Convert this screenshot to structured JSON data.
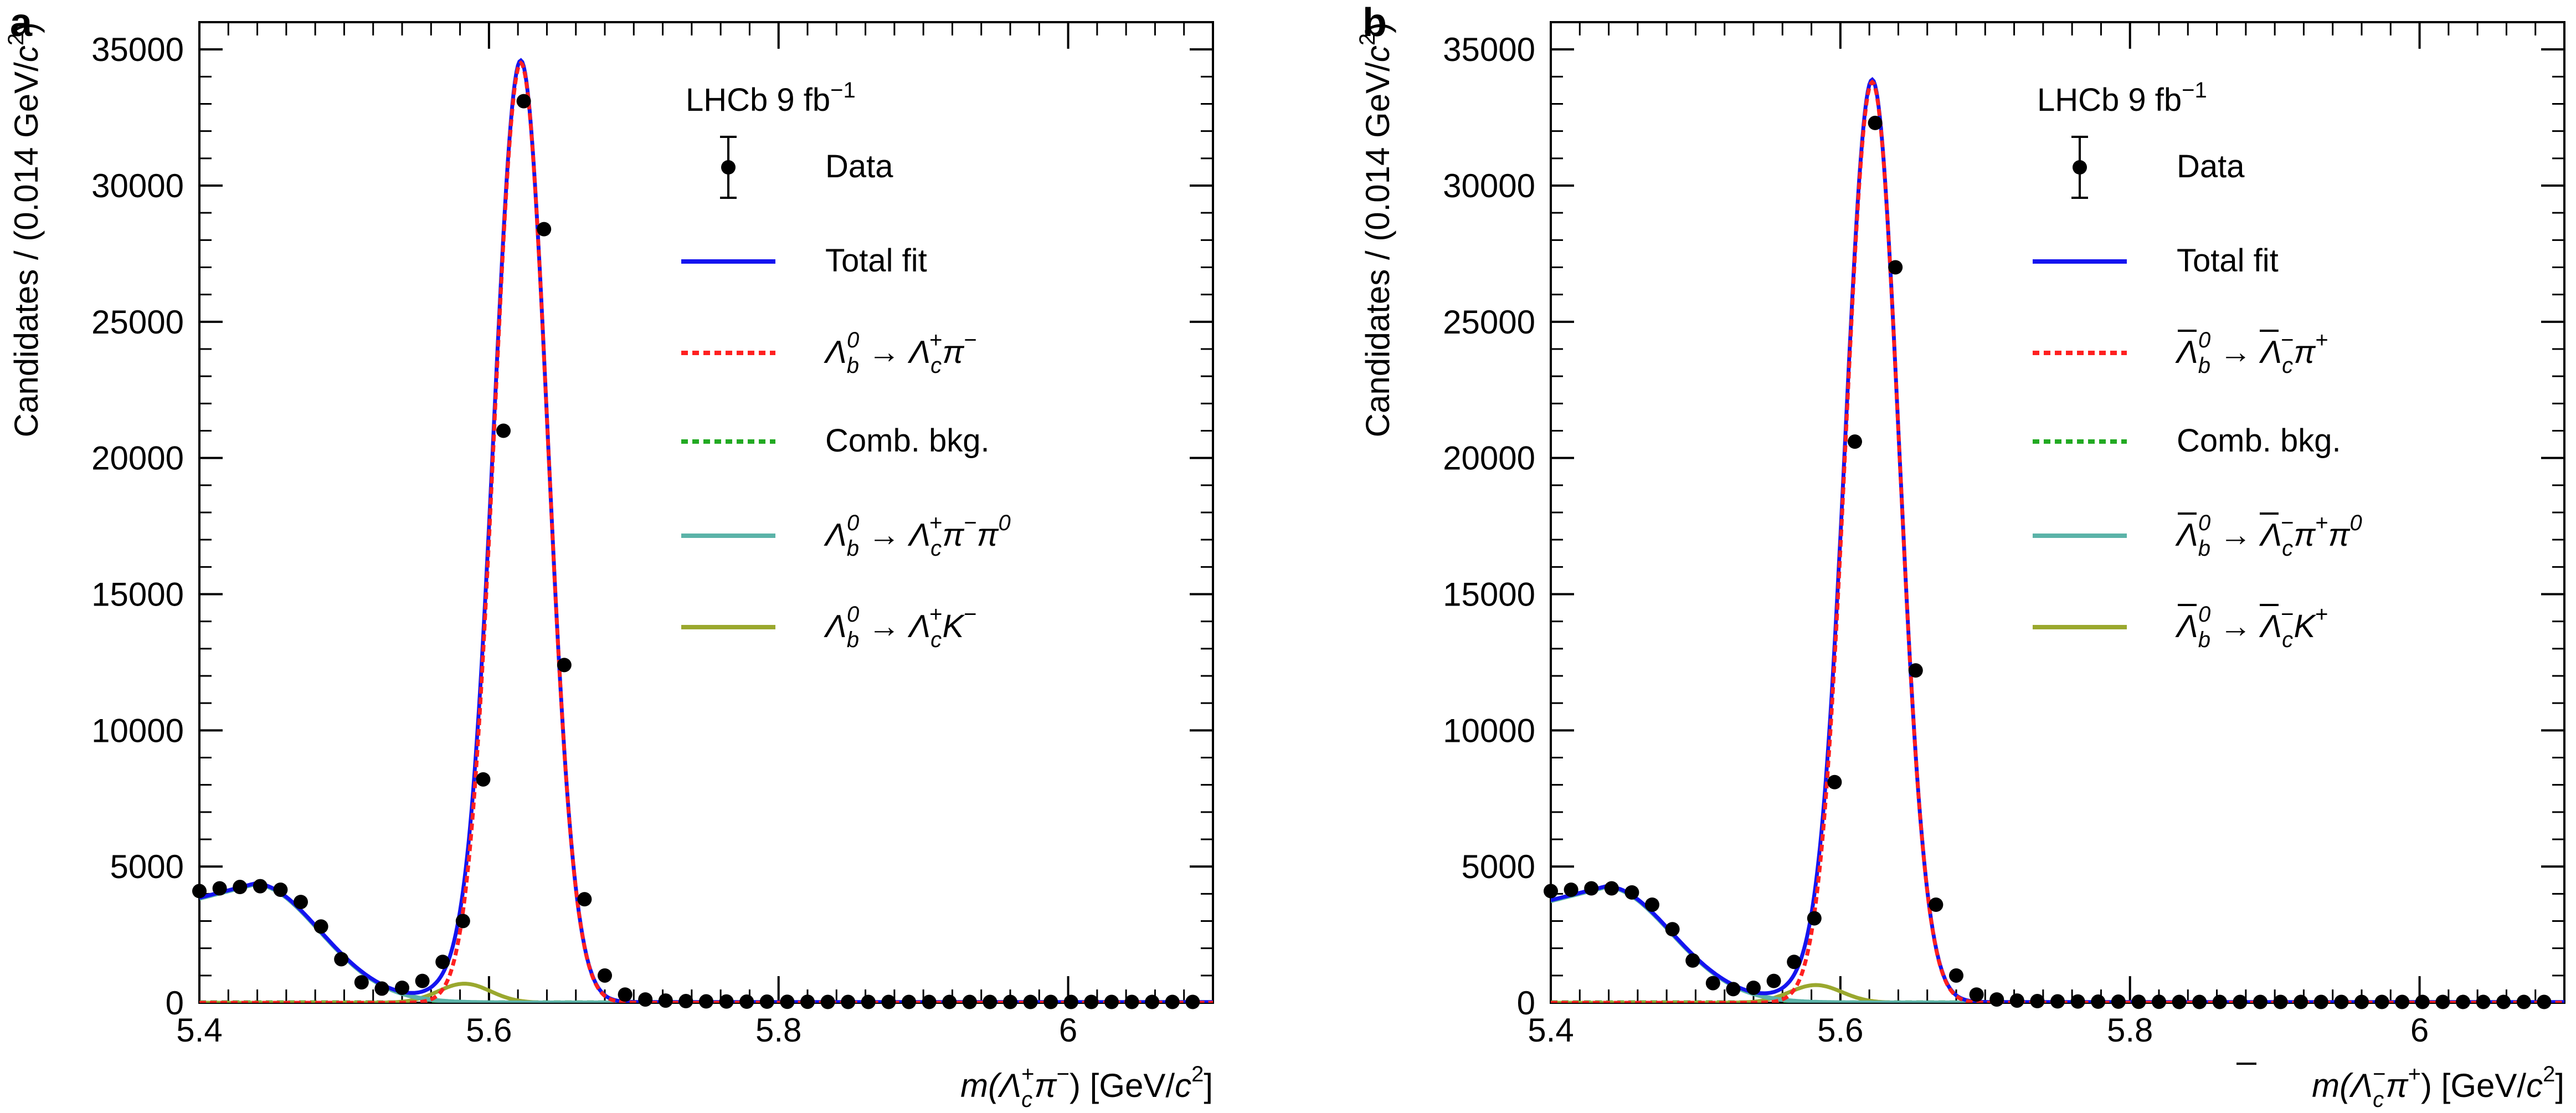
{
  "chart_data": [
    {
      "panel_label": "a",
      "type": "line",
      "title": "",
      "experiment_label": "LHCb 9 fb",
      "experiment_label_sup": "−1",
      "xlabel": {
        "prefix": "m(",
        "particle": "Λ",
        "sup": "+",
        "sub": "c",
        "rest": "π",
        "rest_sup": "−",
        "close": ")",
        "unit": " [GeV/",
        "unit_c": "c",
        "unit_sup": "2",
        "unit_close": "]"
      },
      "ylabel": "Candidates / (0.014 GeV/c²)",
      "ylabel_parts": {
        "main": "Candidates / (0.014 GeV/",
        "c": "c",
        "sup": "2",
        "close": ")"
      },
      "xlim": [
        5.4,
        6.1
      ],
      "ylim": [
        0,
        36000
      ],
      "xticks": [
        5.4,
        5.6,
        5.8,
        6
      ],
      "xtick_labels": [
        "5.4",
        "5.6",
        "5.8",
        "6"
      ],
      "yticks": [
        0,
        5000,
        10000,
        15000,
        20000,
        25000,
        30000,
        35000
      ],
      "ytick_labels": [
        "0",
        "5000",
        "10000",
        "15000",
        "20000",
        "25000",
        "30000",
        "35000"
      ],
      "legend_position": "top-right",
      "legend": [
        {
          "key": "data",
          "label": "Data"
        },
        {
          "key": "total",
          "label": "Total fit"
        },
        {
          "key": "signal",
          "parts": [
            "Λ",
            "b",
            "0",
            " → ",
            "Λ",
            "c",
            "+",
            "π",
            "−",
            "",
            ""
          ]
        },
        {
          "key": "comb",
          "label": "Comb. bkg."
        },
        {
          "key": "pi0",
          "parts": [
            "Λ",
            "b",
            "0",
            " → ",
            "Λ",
            "c",
            "+",
            "π",
            "−",
            "π",
            "0"
          ]
        },
        {
          "key": "kaon",
          "parts": [
            "Λ",
            "b",
            "0",
            " → ",
            "Λ",
            "c",
            "+",
            "K",
            "−",
            "",
            ""
          ]
        }
      ],
      "data": {
        "x": [
          5.4,
          5.414,
          5.428,
          5.442,
          5.456,
          5.47,
          5.484,
          5.498,
          5.512,
          5.526,
          5.54,
          5.554,
          5.568,
          5.582,
          5.596,
          5.61,
          5.624,
          5.638,
          5.652,
          5.666,
          5.68,
          5.694,
          5.708,
          5.722,
          5.736,
          5.75,
          5.764,
          5.778,
          5.792,
          5.806,
          5.82,
          5.834,
          5.848,
          5.862,
          5.876,
          5.89,
          5.904,
          5.918,
          5.932,
          5.946,
          5.96,
          5.974,
          5.988,
          6.002,
          6.016,
          6.03,
          6.044,
          6.058,
          6.072,
          6.086
        ],
        "y": [
          4100,
          4200,
          4250,
          4280,
          4150,
          3700,
          2800,
          1600,
          750,
          520,
          550,
          800,
          1500,
          3000,
          8200,
          21000,
          33100,
          28400,
          12400,
          3800,
          1000,
          300,
          120,
          80,
          60,
          50,
          45,
          40,
          40,
          35,
          35,
          30,
          30,
          30,
          30,
          30,
          30,
          30,
          30,
          30,
          30,
          30,
          30,
          30,
          30,
          30,
          30,
          30,
          30,
          30
        ]
      },
      "fit": {
        "signal_peak": 34500,
        "signal_mean": 5.622,
        "signal_sigma": 0.0185,
        "pi0_peak": 4350,
        "pi0_mean": 5.438,
        "pi0_sigma": 0.045,
        "kaon_peak": 700,
        "kaon_mean": 5.583,
        "kaon_sigma": 0.018,
        "comb_level": 25
      },
      "colors": {
        "data": "#000000",
        "total": "#1414f0",
        "signal": "#ff2020",
        "comb": "#22aa22",
        "pi0": "#5bb3a8",
        "kaon": "#9aa82e"
      }
    },
    {
      "panel_label": "b",
      "type": "line",
      "title": "",
      "experiment_label": "LHCb 9 fb",
      "experiment_label_sup": "−1",
      "xlabel": {
        "prefix": "m(",
        "particle": "Λ",
        "sup": "−",
        "sub": "c",
        "rest": "π",
        "rest_sup": "+",
        "close": ")",
        "unit": " [GeV/",
        "unit_c": "c",
        "unit_sup": "2",
        "unit_close": "]"
      },
      "ylabel": "Candidates / (0.014 GeV/c²)",
      "ylabel_parts": {
        "main": "Candidates / (0.014 GeV/",
        "c": "c",
        "sup": "2",
        "close": ")"
      },
      "xlim": [
        5.4,
        6.1
      ],
      "ylim": [
        0,
        36000
      ],
      "xticks": [
        5.4,
        5.6,
        5.8,
        6
      ],
      "xtick_labels": [
        "5.4",
        "5.6",
        "5.8",
        "6"
      ],
      "yticks": [
        0,
        5000,
        10000,
        15000,
        20000,
        25000,
        30000,
        35000
      ],
      "ytick_labels": [
        "0",
        "5000",
        "10000",
        "15000",
        "20000",
        "25000",
        "30000",
        "35000"
      ],
      "legend_position": "top-right",
      "overline": true,
      "legend": [
        {
          "key": "data",
          "label": "Data"
        },
        {
          "key": "total",
          "label": "Total fit"
        },
        {
          "key": "signal",
          "parts": [
            "Λ",
            "b",
            "0",
            " → ",
            "Λ",
            "c",
            "−",
            "π",
            "+",
            "",
            ""
          ]
        },
        {
          "key": "comb",
          "label": "Comb. bkg."
        },
        {
          "key": "pi0",
          "parts": [
            "Λ",
            "b",
            "0",
            " → ",
            "Λ",
            "c",
            "−",
            "π",
            "+",
            "π",
            "0"
          ]
        },
        {
          "key": "kaon",
          "parts": [
            "Λ",
            "b",
            "0",
            " → ",
            "Λ",
            "c",
            "−",
            "K",
            "+",
            "",
            ""
          ]
        }
      ],
      "data": {
        "x": [
          5.4,
          5.414,
          5.428,
          5.442,
          5.456,
          5.47,
          5.484,
          5.498,
          5.512,
          5.526,
          5.54,
          5.554,
          5.568,
          5.582,
          5.596,
          5.61,
          5.624,
          5.638,
          5.652,
          5.666,
          5.68,
          5.694,
          5.708,
          5.722,
          5.736,
          5.75,
          5.764,
          5.778,
          5.792,
          5.806,
          5.82,
          5.834,
          5.848,
          5.862,
          5.876,
          5.89,
          5.904,
          5.918,
          5.932,
          5.946,
          5.96,
          5.974,
          5.988,
          6.002,
          6.016,
          6.03,
          6.044,
          6.058,
          6.072,
          6.086
        ],
        "y": [
          4100,
          4150,
          4200,
          4200,
          4050,
          3600,
          2700,
          1550,
          720,
          500,
          550,
          800,
          1500,
          3100,
          8100,
          20600,
          32300,
          27000,
          12200,
          3600,
          1000,
          300,
          120,
          80,
          60,
          50,
          45,
          40,
          40,
          35,
          35,
          30,
          30,
          30,
          30,
          30,
          30,
          30,
          30,
          30,
          30,
          30,
          30,
          30,
          30,
          30,
          30,
          30,
          30,
          30
        ]
      },
      "fit": {
        "signal_peak": 33800,
        "signal_mean": 5.622,
        "signal_sigma": 0.0185,
        "pi0_peak": 4250,
        "pi0_mean": 5.438,
        "pi0_sigma": 0.045,
        "kaon_peak": 650,
        "kaon_mean": 5.583,
        "kaon_sigma": 0.018,
        "comb_level": 25
      },
      "colors": {
        "data": "#000000",
        "total": "#1414f0",
        "signal": "#ff2020",
        "comb": "#22aa22",
        "pi0": "#5bb3a8",
        "kaon": "#9aa82e"
      }
    }
  ]
}
